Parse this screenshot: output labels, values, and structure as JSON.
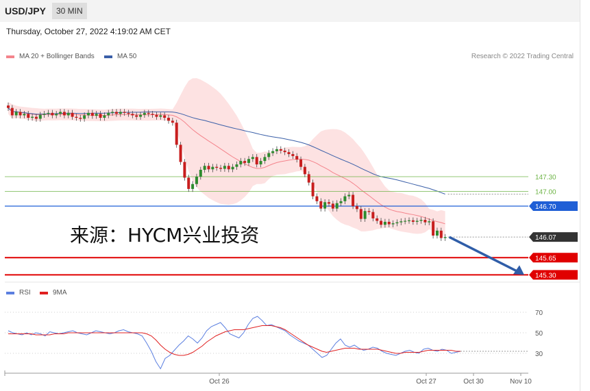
{
  "header": {
    "symbol": "USD/JPY",
    "timeframe": "30 MIN"
  },
  "date": "Thursday, October 27, 2022 4:19:02 AM CET",
  "legend": {
    "bb_label": "MA 20 + Bollinger Bands",
    "bb_color": "#f4848c",
    "ma50_label": "MA 50",
    "ma50_color": "#3a5fa8",
    "research": "Research © 2022 Trading Central"
  },
  "watermark": "来源：HYCM兴业投资",
  "rsi_legend": {
    "rsi_label": "RSI",
    "rsi_color": "#5b7fe0",
    "ma_label": "9MA",
    "ma_color": "#e02020"
  },
  "chart_data": [
    {
      "type": "candlestick",
      "title": "USD/JPY 30 MIN",
      "ylim": [
        144.5,
        149.8
      ],
      "x_ticks": [
        "Oct 26",
        "Oct 27",
        "Oct 30",
        "Nov 10"
      ],
      "last_price": 146.07,
      "levels": [
        {
          "value": 147.3,
          "label": "147.30",
          "kind": "resistance",
          "color": "#6fb548"
        },
        {
          "value": 147.0,
          "label": "147.00",
          "kind": "resistance",
          "color": "#6fb548"
        },
        {
          "value": 146.7,
          "label": "146.70",
          "kind": "pivot",
          "color": "#1f5fd6"
        },
        {
          "value": 146.07,
          "label": "146.07",
          "kind": "last",
          "color": "#333333"
        },
        {
          "value": 145.65,
          "label": "145.65",
          "kind": "support",
          "color": "#e00000"
        },
        {
          "value": 145.3,
          "label": "145.30",
          "kind": "support",
          "color": "#e00000"
        }
      ],
      "forecast_arrow": {
        "from": 146.07,
        "to": 145.3,
        "color": "#2f5da8"
      },
      "close": [
        148.7,
        148.55,
        148.62,
        148.55,
        148.58,
        148.5,
        148.52,
        148.48,
        148.56,
        148.58,
        148.6,
        148.55,
        148.58,
        148.62,
        148.55,
        148.6,
        148.52,
        148.5,
        148.48,
        148.55,
        148.6,
        148.54,
        148.58,
        148.5,
        148.55,
        148.6,
        148.62,
        148.58,
        148.62,
        148.6,
        148.58,
        148.55,
        148.52,
        148.56,
        148.6,
        148.58,
        148.56,
        148.52,
        148.55,
        148.5,
        148.44,
        148.4,
        147.95,
        147.6,
        147.28,
        147.05,
        147.15,
        147.3,
        147.44,
        147.52,
        147.45,
        147.5,
        147.48,
        147.46,
        147.52,
        147.45,
        147.5,
        147.55,
        147.62,
        147.58,
        147.66,
        147.7,
        147.55,
        147.62,
        147.7,
        147.78,
        147.82,
        147.86,
        147.83,
        147.8,
        147.76,
        147.72,
        147.65,
        147.5,
        147.35,
        147.18,
        146.9,
        146.8,
        146.65,
        146.78,
        146.75,
        146.65,
        146.76,
        146.8,
        146.9,
        146.93,
        146.7,
        146.64,
        146.44,
        146.6,
        146.58,
        146.45,
        146.4,
        146.32,
        146.38,
        146.33,
        146.35,
        146.37,
        146.39,
        146.4,
        146.41,
        146.38,
        146.4,
        146.42,
        146.37,
        146.39,
        146.1,
        146.2,
        146.05,
        146.07
      ],
      "open": [
        148.75,
        148.7,
        148.55,
        148.62,
        148.55,
        148.58,
        148.5,
        148.52,
        148.48,
        148.56,
        148.58,
        148.6,
        148.55,
        148.58,
        148.62,
        148.55,
        148.6,
        148.52,
        148.5,
        148.48,
        148.55,
        148.6,
        148.54,
        148.58,
        148.5,
        148.55,
        148.6,
        148.62,
        148.58,
        148.62,
        148.6,
        148.58,
        148.55,
        148.52,
        148.56,
        148.6,
        148.58,
        148.56,
        148.52,
        148.55,
        148.5,
        148.44,
        148.4,
        147.95,
        147.6,
        147.28,
        147.05,
        147.15,
        147.3,
        147.44,
        147.52,
        147.45,
        147.5,
        147.48,
        147.46,
        147.52,
        147.45,
        147.5,
        147.55,
        147.62,
        147.58,
        147.66,
        147.7,
        147.55,
        147.62,
        147.7,
        147.78,
        147.82,
        147.86,
        147.83,
        147.8,
        147.76,
        147.72,
        147.65,
        147.5,
        147.35,
        147.18,
        146.9,
        146.8,
        146.65,
        146.78,
        146.75,
        146.65,
        146.76,
        146.8,
        146.9,
        146.93,
        146.7,
        146.64,
        146.44,
        146.6,
        146.58,
        146.45,
        146.4,
        146.32,
        146.38,
        146.33,
        146.35,
        146.37,
        146.39,
        146.4,
        146.41,
        146.38,
        146.4,
        146.42,
        146.37,
        146.39,
        146.1,
        146.2,
        146.05
      ]
    },
    {
      "type": "line",
      "title": "RSI",
      "ylim": [
        10,
        80
      ],
      "y_ticks": [
        70,
        50,
        30
      ],
      "series": [
        {
          "name": "RSI",
          "values": [
            52,
            50,
            49,
            48,
            50,
            48,
            50,
            49,
            47,
            51,
            50,
            49,
            50,
            51,
            52,
            50,
            49,
            48,
            50,
            52,
            51,
            50,
            49,
            50,
            52,
            53,
            51,
            50,
            49,
            47,
            40,
            32,
            22,
            15,
            25,
            28,
            33,
            38,
            42,
            47,
            44,
            40,
            45,
            52,
            56,
            58,
            60,
            55,
            49,
            47,
            45,
            50,
            58,
            64,
            66,
            62,
            57,
            58,
            56,
            54,
            52,
            48,
            45,
            42,
            40,
            38,
            34,
            30,
            26,
            28,
            34,
            40,
            44,
            38,
            36,
            38,
            35,
            33,
            34,
            36,
            35,
            32,
            30,
            29,
            28,
            30,
            32,
            33,
            31,
            30,
            34,
            35,
            33,
            32,
            34,
            33,
            30,
            31,
            32
          ]
        },
        {
          "name": "9MA",
          "values": [
            49,
            49,
            49,
            49,
            49,
            49,
            48,
            48,
            48,
            48,
            49,
            49,
            49,
            50,
            50,
            50,
            50,
            50,
            50,
            50,
            50,
            50,
            50,
            50,
            50,
            50,
            50,
            50,
            50,
            50,
            49,
            47,
            43,
            38,
            34,
            31,
            29,
            28,
            28,
            29,
            31,
            34,
            37,
            41,
            44,
            47,
            49,
            51,
            52,
            53,
            53,
            53,
            54,
            55,
            56,
            57,
            57,
            57,
            56,
            55,
            53,
            50,
            47,
            44,
            41,
            38,
            36,
            34,
            32,
            31,
            32,
            33,
            34,
            35,
            35,
            35,
            34,
            34,
            34,
            34,
            34,
            33,
            32,
            31,
            30,
            30,
            31,
            31,
            31,
            31,
            32,
            33,
            33,
            33,
            33,
            33,
            33,
            32,
            32
          ]
        }
      ]
    }
  ]
}
